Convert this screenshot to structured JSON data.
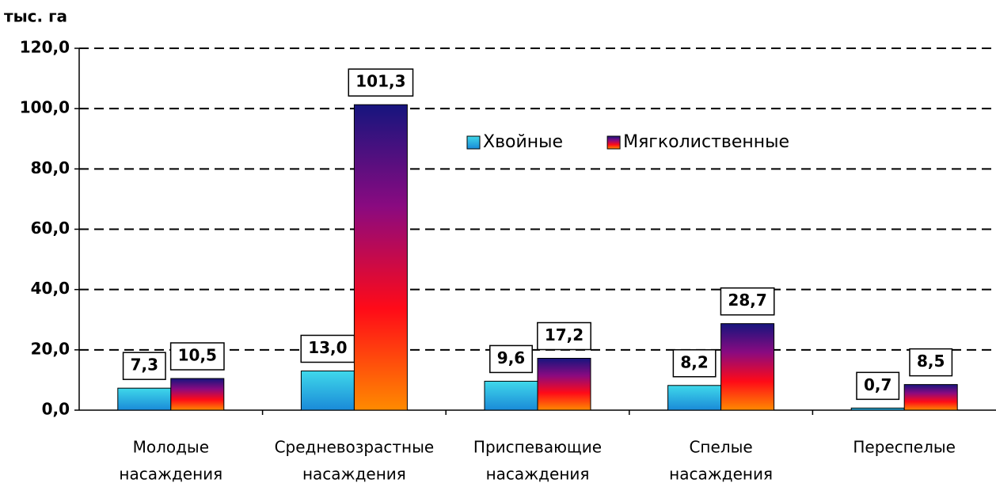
{
  "chart_data": {
    "type": "bar",
    "y_label": "тыс. га",
    "categories": [
      [
        "Молодые",
        "насаждения"
      ],
      [
        "Средневозрастные",
        "насаждения"
      ],
      [
        "Приспевающие",
        "насаждения"
      ],
      [
        "Спелые",
        "насаждения"
      ],
      [
        "Переспелые"
      ]
    ],
    "series": [
      {
        "name": "Хвойные",
        "color": "#1fb8e0",
        "gradient": [
          "#3fd8ea",
          "#1a8ad8"
        ],
        "values": [
          7.3,
          13.0,
          9.6,
          8.2,
          0.7
        ],
        "value_labels": [
          "7,3",
          "13,0",
          "9,6",
          "8,2",
          "0,7"
        ]
      },
      {
        "name": "Мягколиственные",
        "color": "#7a0f90",
        "gradient": [
          "#16157e",
          "#8a0a80",
          "#ff0a18",
          "#ff8a00"
        ],
        "values": [
          10.5,
          101.3,
          17.2,
          28.7,
          8.5
        ],
        "value_labels": [
          "10,5",
          "101,3",
          "17,2",
          "28,7",
          "8,5"
        ]
      }
    ],
    "ylim": [
      0,
      120
    ],
    "yticks": [
      {
        "value": 0,
        "label": "0,0"
      },
      {
        "value": 20,
        "label": "20,0"
      },
      {
        "value": 40,
        "label": "40,0"
      },
      {
        "value": 60,
        "label": "60,0"
      },
      {
        "value": 80,
        "label": "80,0"
      },
      {
        "value": 100,
        "label": "100,0"
      },
      {
        "value": 120,
        "label": "120,0"
      }
    ],
    "grid": true,
    "legend": "top-center"
  }
}
